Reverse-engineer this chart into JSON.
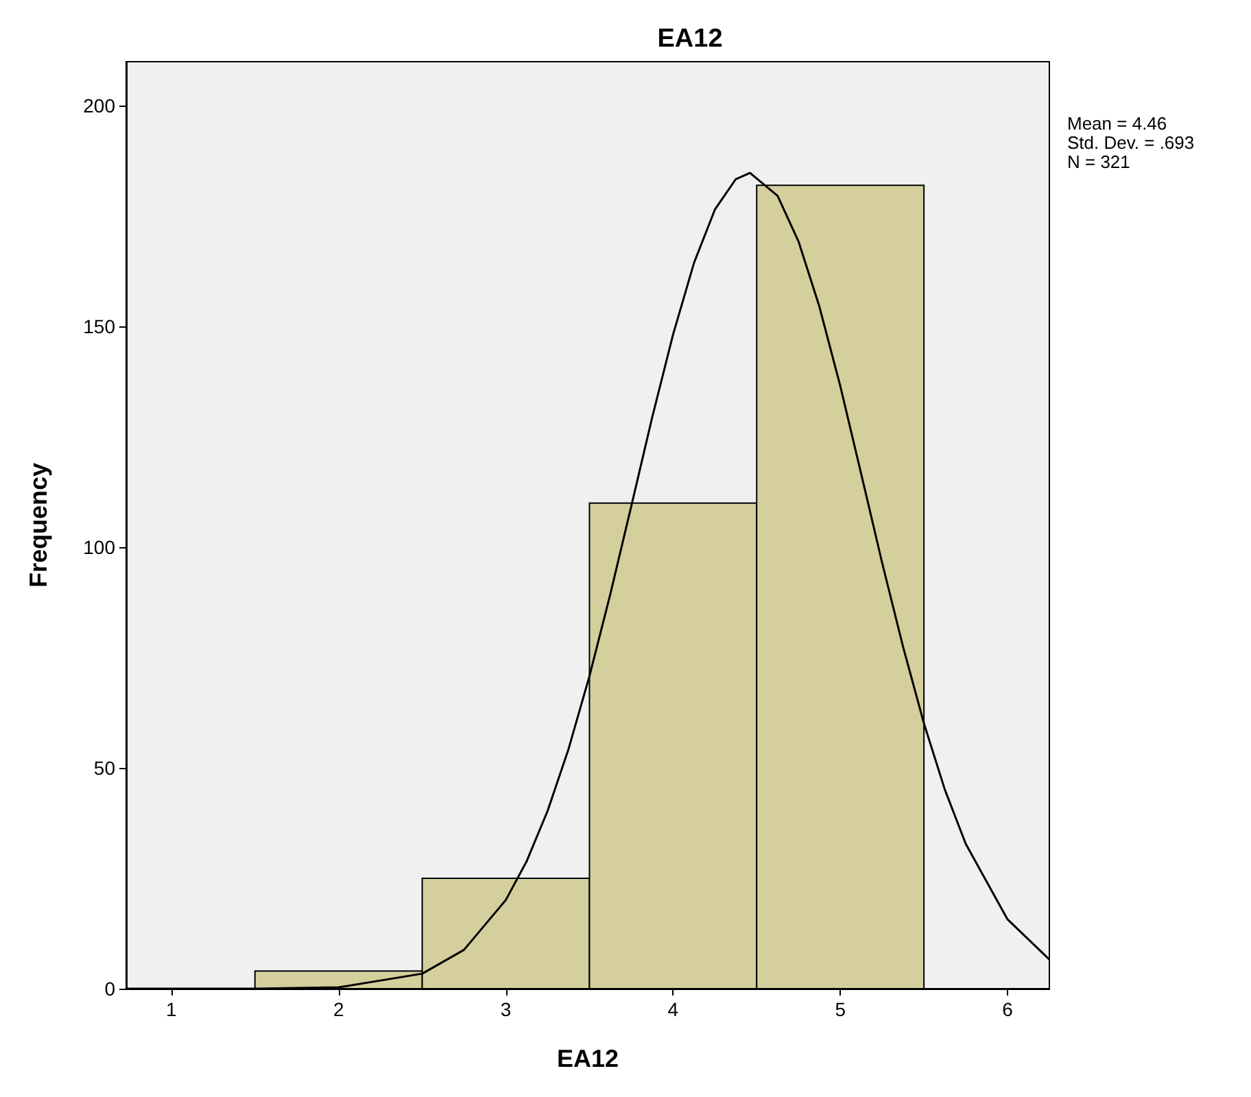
{
  "chart_data": {
    "type": "histogram",
    "title": "EA12",
    "xlabel": "EA12",
    "ylabel": "Frequency",
    "bins": [
      1.5,
      2.5,
      3.5,
      4.5,
      5.5
    ],
    "values": [
      4,
      25,
      110,
      182
    ],
    "color": "#d4cf9c",
    "xlim": [
      0.73,
      6.25
    ],
    "xticks": [
      1,
      2,
      3,
      4,
      5,
      6
    ],
    "ylim": [
      0,
      210
    ],
    "yticks": [
      0,
      50,
      100,
      150,
      200
    ],
    "grid": false,
    "series": [
      {
        "type": "line",
        "color": "#000000",
        "marker": "none",
        "line_style": "solid",
        "x": [
          0.73,
          1.25,
          1.5,
          2.0,
          2.5,
          2.75,
          3.0,
          3.125,
          3.25,
          3.375,
          3.5,
          3.625,
          3.75,
          3.875,
          4.0,
          4.125,
          4.25,
          4.375,
          4.46,
          4.625,
          4.75,
          4.875,
          5.0,
          5.125,
          5.25,
          5.375,
          5.5,
          5.625,
          5.75,
          6.0,
          6.25
        ],
        "values": [
          0,
          0,
          0,
          0.3,
          3.4,
          8.8,
          20.1,
          28.9,
          40.3,
          54.3,
          70.8,
          89.4,
          109.3,
          129.4,
          148.2,
          164.4,
          176.5,
          183.4,
          184.8,
          179.6,
          169.3,
          154.5,
          136.5,
          116.6,
          96.5,
          77.5,
          60.1,
          45.1,
          32.8,
          15.7,
          6.6
        ]
      }
    ],
    "annotations": [
      "Mean = 4.46",
      "Std. Dev. = .693",
      "N = 321"
    ]
  }
}
